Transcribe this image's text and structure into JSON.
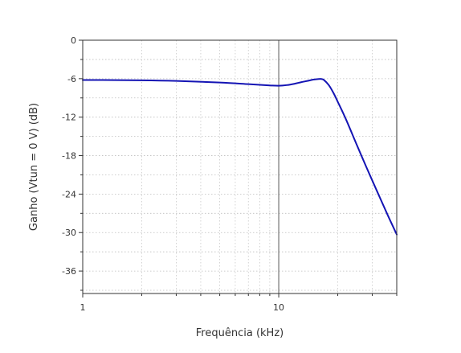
{
  "chart_data": {
    "type": "line",
    "title": "",
    "xlabel": "Frequência (kHz)",
    "ylabel": "Ganho (Vtun = 0 V) (dB)",
    "xscale": "log",
    "xlim": [
      1,
      40
    ],
    "ylim": [
      -39.5,
      0
    ],
    "xticks": [
      {
        "value": 1,
        "label": "1"
      },
      {
        "value": 10,
        "label": "10"
      }
    ],
    "yticks": [
      {
        "value": 0,
        "label": "0"
      },
      {
        "value": -6,
        "label": "-6"
      },
      {
        "value": -12,
        "label": "-12"
      },
      {
        "value": -18,
        "label": "-18"
      },
      {
        "value": -24,
        "label": "-24"
      },
      {
        "value": -30,
        "label": "-30"
      },
      {
        "value": -36,
        "label": "-36"
      }
    ],
    "grid": true,
    "reference_line": {
      "axis": "x",
      "value": 10,
      "color": "#555555"
    },
    "series": [
      {
        "color": "#1414b4",
        "x": [
          1,
          2,
          3,
          5,
          7,
          9,
          10,
          11,
          12,
          13,
          14,
          15,
          16,
          16.5,
          17,
          18,
          19,
          20,
          22,
          25,
          28,
          32,
          36,
          40
        ],
        "y": [
          -6.2,
          -6.25,
          -6.35,
          -6.6,
          -6.85,
          -7.05,
          -7.1,
          -7.0,
          -6.8,
          -6.55,
          -6.35,
          -6.15,
          -6.05,
          -6.05,
          -6.2,
          -7.0,
          -8.2,
          -9.6,
          -12.3,
          -16.3,
          -19.8,
          -23.8,
          -27.3,
          -30.3
        ]
      }
    ]
  }
}
